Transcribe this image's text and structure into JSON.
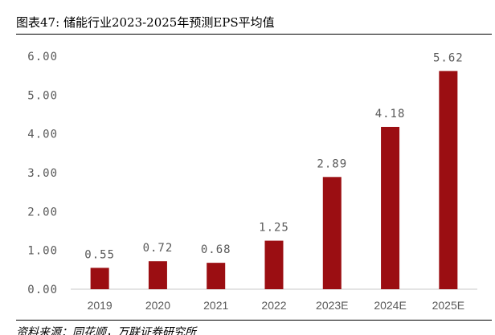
{
  "header": {
    "figure_label": "图表47:",
    "title": "储能行业2023-2025年预测EPS平均值"
  },
  "chart_data": {
    "type": "bar",
    "title": "",
    "xlabel": "",
    "ylabel": "",
    "categories": [
      "2019",
      "2020",
      "2021",
      "2022",
      "2023E",
      "2024E",
      "2025E"
    ],
    "series": [
      {
        "values": [
          0.55,
          0.72,
          0.68,
          1.25,
          2.89,
          4.18,
          5.62
        ]
      }
    ],
    "data_labels": [
      "0.55",
      "0.72",
      "0.68",
      "1.25",
      "2.89",
      "4.18",
      "5.62"
    ],
    "ylim": [
      0,
      6
    ],
    "yticks": [
      "0.00",
      "1.00",
      "2.00",
      "3.00",
      "4.00",
      "5.00",
      "6.00"
    ],
    "grid": false,
    "legend": "none",
    "bar_color": "#9b0e12"
  },
  "footer": {
    "source": "资料来源：同花顺，万联证券研究所"
  }
}
